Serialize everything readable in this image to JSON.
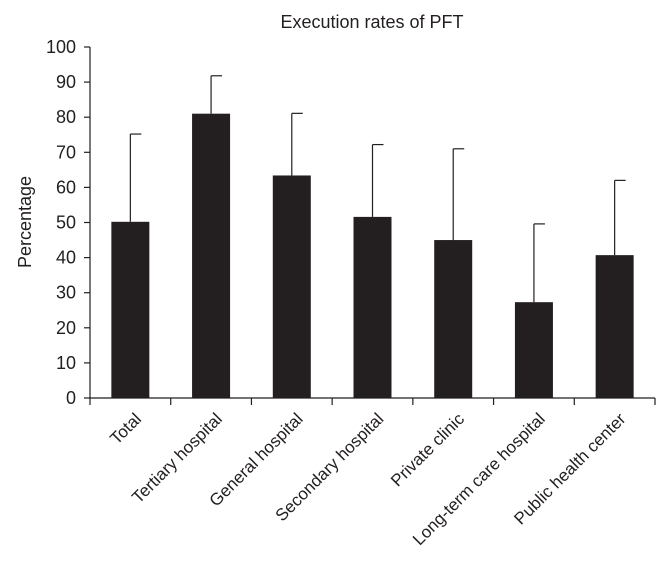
{
  "chart_data": {
    "type": "bar",
    "title": "Execution rates of PFT",
    "xlabel": "",
    "ylabel": "Percentage",
    "ylim": [
      0,
      100
    ],
    "yticks": [
      0,
      10,
      20,
      30,
      40,
      50,
      60,
      70,
      80,
      90,
      100
    ],
    "categories": [
      "Total",
      "Tertiary hospital",
      "General hospital",
      "Secondary hospital",
      "Private clinic",
      "Long-term care hospital",
      "Public health center"
    ],
    "values": [
      50.2,
      81.0,
      63.4,
      51.6,
      45.0,
      27.3,
      40.7
    ],
    "error_upper": [
      75.2,
      91.8,
      81.1,
      72.2,
      71.0,
      49.6,
      62.0
    ],
    "bar_color": "#231f20",
    "grid": false,
    "legend": "none"
  }
}
